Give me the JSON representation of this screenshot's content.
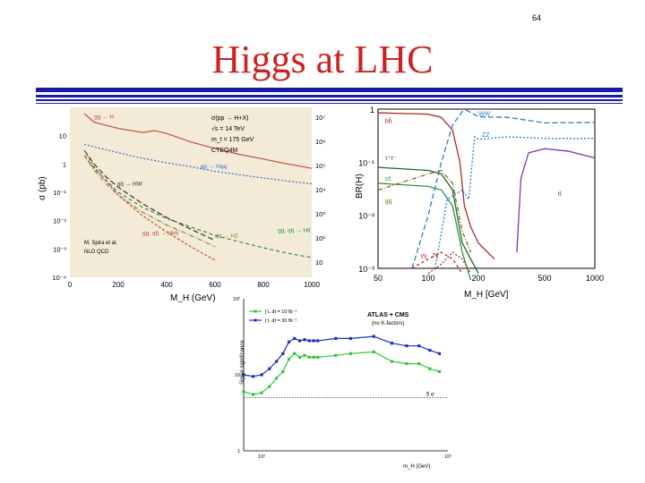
{
  "slide": {
    "page_number": "64",
    "title": "Higgs at LHC"
  },
  "colors": {
    "title": "#cc2222",
    "rule": "#1a1aa8",
    "plot_background": "#f3ead8"
  },
  "chart_data": [
    {
      "type": "line",
      "ylabel": "σ (pb)",
      "xlabel": "M_H (GeV)",
      "xlim": [
        0,
        1000
      ],
      "ylim": [
        0.0001,
        100
      ],
      "yscale": "log",
      "xticks": [
        "0",
        "200",
        "400",
        "600",
        "800",
        "1000"
      ],
      "yticks_left": [
        "10",
        "1",
        "10^-1",
        "10^-2",
        "10^-3",
        "10^-4"
      ],
      "yticks_right": [
        "10^7",
        "10^6",
        "10^5",
        "10^4",
        "10^3",
        "10^2",
        "10"
      ],
      "annotations": [
        "σ(pp → H+X)",
        "√s = 14 TeV",
        "m_t = 175 GeV",
        "CTEQ4M",
        "M. Spira et al.",
        "NLO QCD"
      ],
      "series": [
        {
          "name": "gg → H",
          "x": [
            60,
            100,
            200,
            300,
            350,
            400,
            500,
            600,
            700,
            800,
            900,
            1000
          ],
          "y": [
            60,
            30,
            18,
            13,
            15,
            12,
            6,
            3.5,
            2.2,
            1.5,
            1.0,
            0.7
          ]
        },
        {
          "name": "qq → Hqq",
          "x": [
            60,
            100,
            200,
            300,
            400,
            500,
            600,
            700,
            800,
            900,
            1000
          ],
          "y": [
            5,
            4,
            2.5,
            1.6,
            1.1,
            0.8,
            0.55,
            0.42,
            0.32,
            0.25,
            0.2
          ]
        },
        {
          "name": "qq̄ → HW",
          "x": [
            60,
            100,
            150,
            200,
            300,
            400,
            500,
            600
          ],
          "y": [
            3,
            1,
            0.35,
            0.15,
            0.04,
            0.013,
            0.005,
            0.002
          ]
        },
        {
          "name": "qq̄ → HZ",
          "x": [
            60,
            100,
            150,
            200,
            300,
            400,
            500,
            600
          ],
          "y": [
            2,
            0.6,
            0.2,
            0.08,
            0.02,
            0.007,
            0.003,
            0.0012
          ]
        },
        {
          "name": "gg, qq̄ → Htt̄",
          "x": [
            60,
            100,
            200,
            300,
            400,
            500,
            600,
            700,
            800,
            900,
            1000
          ],
          "y": [
            2,
            0.7,
            0.1,
            0.03,
            0.012,
            0.006,
            0.003,
            0.0018,
            0.0011,
            0.0007,
            0.0005
          ]
        },
        {
          "name": "gg, qq̄ → Hbb̄",
          "x": [
            60,
            100,
            200,
            300,
            400,
            500,
            600
          ],
          "y": [
            3,
            0.8,
            0.08,
            0.015,
            0.004,
            0.0012,
            0.0004
          ]
        }
      ]
    },
    {
      "type": "line",
      "ylabel": "BR(H)",
      "xlabel": "M_H [GeV]",
      "xscale": "log",
      "yscale": "log",
      "xlim": [
        50,
        1000
      ],
      "ylim": [
        0.001,
        1
      ],
      "xticks": [
        "50",
        "100",
        "200",
        "500",
        "1000"
      ],
      "yticks": [
        "1",
        "10^-1",
        "10^-2",
        "10^-3"
      ],
      "series": [
        {
          "name": "bb̄",
          "x": [
            50,
            80,
            100,
            120,
            140,
            155,
            165,
            180,
            200,
            250
          ],
          "y": [
            0.85,
            0.82,
            0.8,
            0.7,
            0.4,
            0.1,
            0.015,
            0.006,
            0.003,
            0.0015
          ]
        },
        {
          "name": "WW",
          "x": [
            80,
            100,
            120,
            140,
            160,
            170,
            200,
            300,
            500,
            1000
          ],
          "y": [
            0.001,
            0.01,
            0.1,
            0.5,
            0.9,
            0.95,
            0.72,
            0.7,
            0.55,
            0.56
          ]
        },
        {
          "name": "ZZ",
          "x": [
            110,
            130,
            160,
            175,
            190,
            200,
            300,
            500,
            1000
          ],
          "y": [
            0.001,
            0.02,
            0.03,
            0.02,
            0.3,
            0.27,
            0.3,
            0.28,
            0.28
          ]
        },
        {
          "name": "τ⁺τ⁻",
          "x": [
            50,
            100,
            120,
            140,
            160,
            200
          ],
          "y": [
            0.08,
            0.07,
            0.06,
            0.03,
            0.003,
            0.0008
          ]
        },
        {
          "name": "cc̄",
          "x": [
            50,
            100,
            120,
            140,
            160,
            180
          ],
          "y": [
            0.04,
            0.035,
            0.03,
            0.015,
            0.002,
            0.0006
          ]
        },
        {
          "name": "gg",
          "x": [
            50,
            100,
            120,
            140,
            160,
            180
          ],
          "y": [
            0.03,
            0.06,
            0.07,
            0.04,
            0.005,
            0.002
          ]
        },
        {
          "name": "tt̄",
          "x": [
            340,
            360,
            400,
            500,
            700,
            1000
          ],
          "y": [
            0.002,
            0.05,
            0.15,
            0.18,
            0.16,
            0.12
          ]
        },
        {
          "name": "Zγ",
          "x": [
            100,
            120,
            140,
            160,
            180
          ],
          "y": [
            0.0008,
            0.0012,
            0.002,
            0.0015,
            0.0008
          ]
        },
        {
          "name": "γγ",
          "x": [
            80,
            100,
            120,
            140,
            160
          ],
          "y": [
            0.001,
            0.0015,
            0.002,
            0.0015,
            0.0008
          ]
        }
      ]
    },
    {
      "type": "line",
      "title": "ATLAS + CMS",
      "subtitle": "(no K-factors)",
      "ylabel": "Signal significance",
      "xlabel": "m_H (GeV)",
      "xscale": "log",
      "yscale": "log",
      "xlim": [
        80,
        1000
      ],
      "ylim": [
        1,
        100
      ],
      "xticks": [
        "10^2",
        "10^3"
      ],
      "yticks": [
        "10^2",
        "10",
        "1"
      ],
      "threshold_label": "5 σ",
      "threshold": 5,
      "series": [
        {
          "name": "∫ L dt = 10 fb⁻¹",
          "x": [
            80,
            90,
            100,
            110,
            120,
            130,
            140,
            150,
            160,
            170,
            180,
            190,
            200,
            250,
            300,
            400,
            500,
            600,
            700,
            800,
            900
          ],
          "y": [
            6,
            5.5,
            5.8,
            7,
            9,
            11,
            16,
            19,
            17,
            18,
            17,
            17,
            17,
            18,
            19,
            20,
            15,
            14,
            14,
            12,
            11
          ]
        },
        {
          "name": "∫ L dt = 30 fb⁻¹",
          "x": [
            80,
            90,
            100,
            110,
            120,
            130,
            140,
            150,
            160,
            170,
            180,
            190,
            200,
            250,
            300,
            400,
            500,
            600,
            700,
            800,
            900
          ],
          "y": [
            10,
            9.5,
            10,
            12,
            15,
            19,
            27,
            30,
            28,
            29,
            28,
            28,
            28,
            30,
            30,
            32,
            26,
            24,
            24,
            21,
            19
          ]
        }
      ]
    }
  ]
}
